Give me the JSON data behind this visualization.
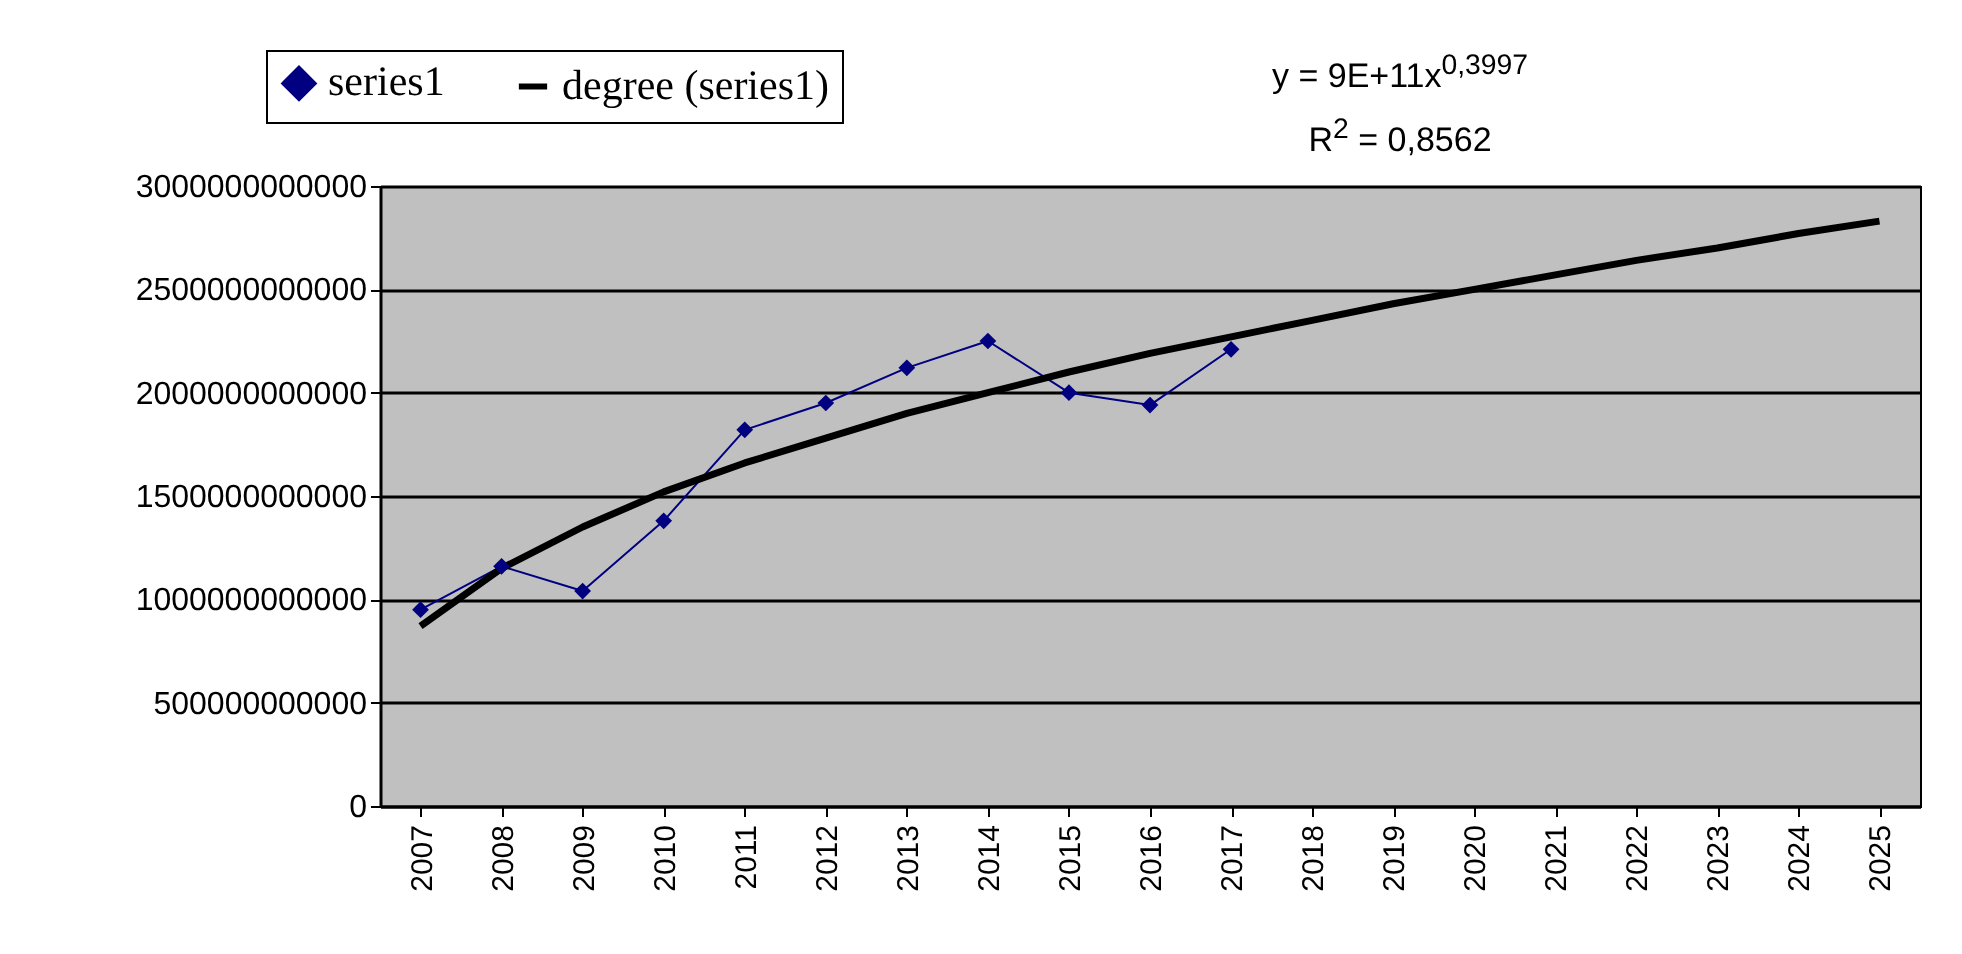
{
  "chart_data": {
    "type": "line",
    "categories": [
      "2007",
      "2008",
      "2009",
      "2010",
      "2011",
      "2012",
      "2013",
      "2014",
      "2015",
      "2016",
      "2017",
      "2018",
      "2019",
      "2020",
      "2021",
      "2022",
      "2023",
      "2024",
      "2025"
    ],
    "series": [
      {
        "name": "series1",
        "color": "#000080",
        "marker": "diamond",
        "values": [
          950000000000,
          1160000000000,
          1040000000000,
          1380000000000,
          1820000000000,
          1950000000000,
          2120000000000,
          2250000000000,
          2000000000000,
          1940000000000,
          2210000000000,
          null,
          null,
          null,
          null,
          null,
          null,
          null,
          null
        ]
      },
      {
        "name": "degree (series1)",
        "color": "#000000",
        "marker": "none",
        "values": [
          870000000000,
          1150000000000,
          1350000000000,
          1520000000000,
          1660000000000,
          1780000000000,
          1900000000000,
          2000000000000,
          2100000000000,
          2190000000000,
          2270000000000,
          2350000000000,
          2430000000000,
          2500000000000,
          2570000000000,
          2640000000000,
          2700000000000,
          2770000000000,
          2830000000000
        ]
      }
    ],
    "ylim": [
      0,
      3000000000000
    ],
    "yticks": [
      0,
      500000000000,
      1000000000000,
      1500000000000,
      2000000000000,
      2500000000000,
      3000000000000
    ],
    "grid": "y",
    "legend": "top left",
    "annotations": [
      "y = 9E+11x$^{0,3997}$",
      "R$^{2}$ = 0,8562"
    ]
  }
}
